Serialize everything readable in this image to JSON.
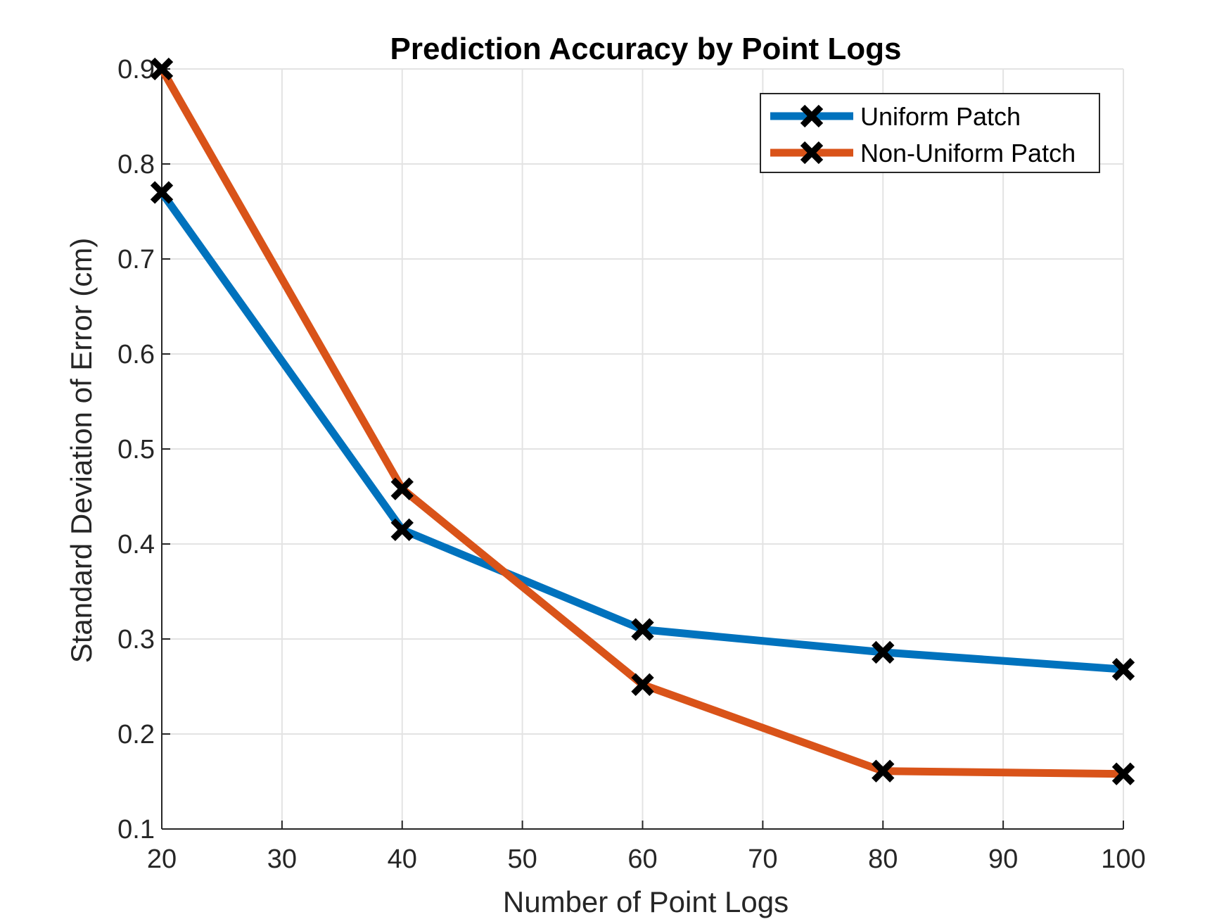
{
  "chart_data": {
    "type": "line",
    "title": "Prediction Accuracy by Point Logs",
    "xlabel": "Number of Point Logs",
    "ylabel": "Standard Deviation of Error (cm)",
    "xlim": [
      20,
      100
    ],
    "ylim": [
      0.1,
      0.9
    ],
    "xticks": [
      20,
      30,
      40,
      50,
      60,
      70,
      80,
      90,
      100
    ],
    "yticks": [
      0.1,
      0.2,
      0.3,
      0.4,
      0.5,
      0.6,
      0.7,
      0.8,
      0.9
    ],
    "x_tick_labels": [
      "20",
      "30",
      "40",
      "50",
      "60",
      "70",
      "80",
      "90",
      "100"
    ],
    "y_tick_labels": [
      "0.1",
      "0.2",
      "0.3",
      "0.4",
      "0.5",
      "0.6",
      "0.7",
      "0.8",
      "0.9"
    ],
    "grid": true,
    "legend_position": "top-right",
    "x": [
      20,
      40,
      60,
      80,
      100
    ],
    "series": [
      {
        "name": "Uniform Patch",
        "color": "#0072BD",
        "marker": "x",
        "values": [
          0.77,
          0.415,
          0.31,
          0.286,
          0.268
        ]
      },
      {
        "name": "Non-Uniform Patch",
        "color": "#D95319",
        "marker": "x",
        "values": [
          0.9,
          0.458,
          0.252,
          0.161,
          0.158
        ]
      }
    ]
  }
}
